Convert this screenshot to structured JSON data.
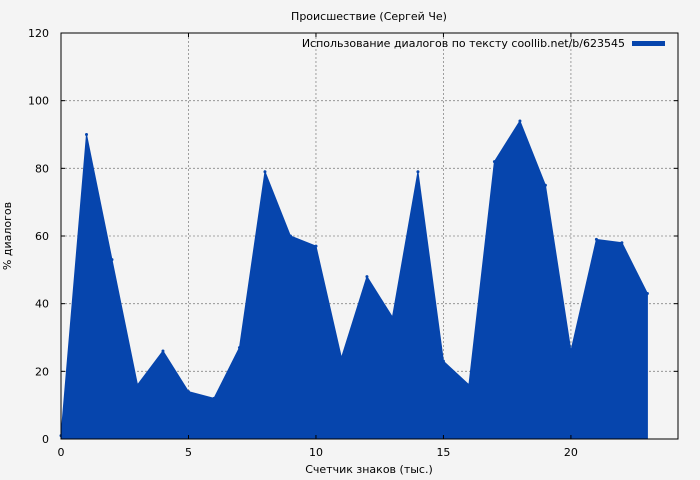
{
  "chart_data": {
    "type": "area",
    "title": "Происшествие (Сергей Че)",
    "xlabel": "Счетчик знаков (тыс.)",
    "ylabel": "% диалогов",
    "xlim": [
      0,
      24.2
    ],
    "ylim": [
      0,
      120
    ],
    "xticks": [
      0,
      5,
      10,
      15,
      20
    ],
    "yticks": [
      0,
      20,
      40,
      60,
      80,
      100,
      120
    ],
    "grid": true,
    "legend_position": "top-right",
    "series": [
      {
        "name": "Использование диалогов по тексту coollib.net/b/623545",
        "color": "#0645ad",
        "x": [
          0,
          1,
          2,
          3,
          4,
          5,
          6,
          7,
          8,
          9,
          10,
          11,
          12,
          13,
          14,
          15,
          16,
          17,
          18,
          19,
          20,
          21,
          22,
          23
        ],
        "values": [
          1,
          90,
          53,
          16,
          26,
          14,
          12,
          27,
          79,
          60,
          57,
          24,
          48,
          36,
          79,
          23,
          16,
          82,
          94,
          75,
          26,
          59,
          58,
          43
        ]
      }
    ]
  }
}
